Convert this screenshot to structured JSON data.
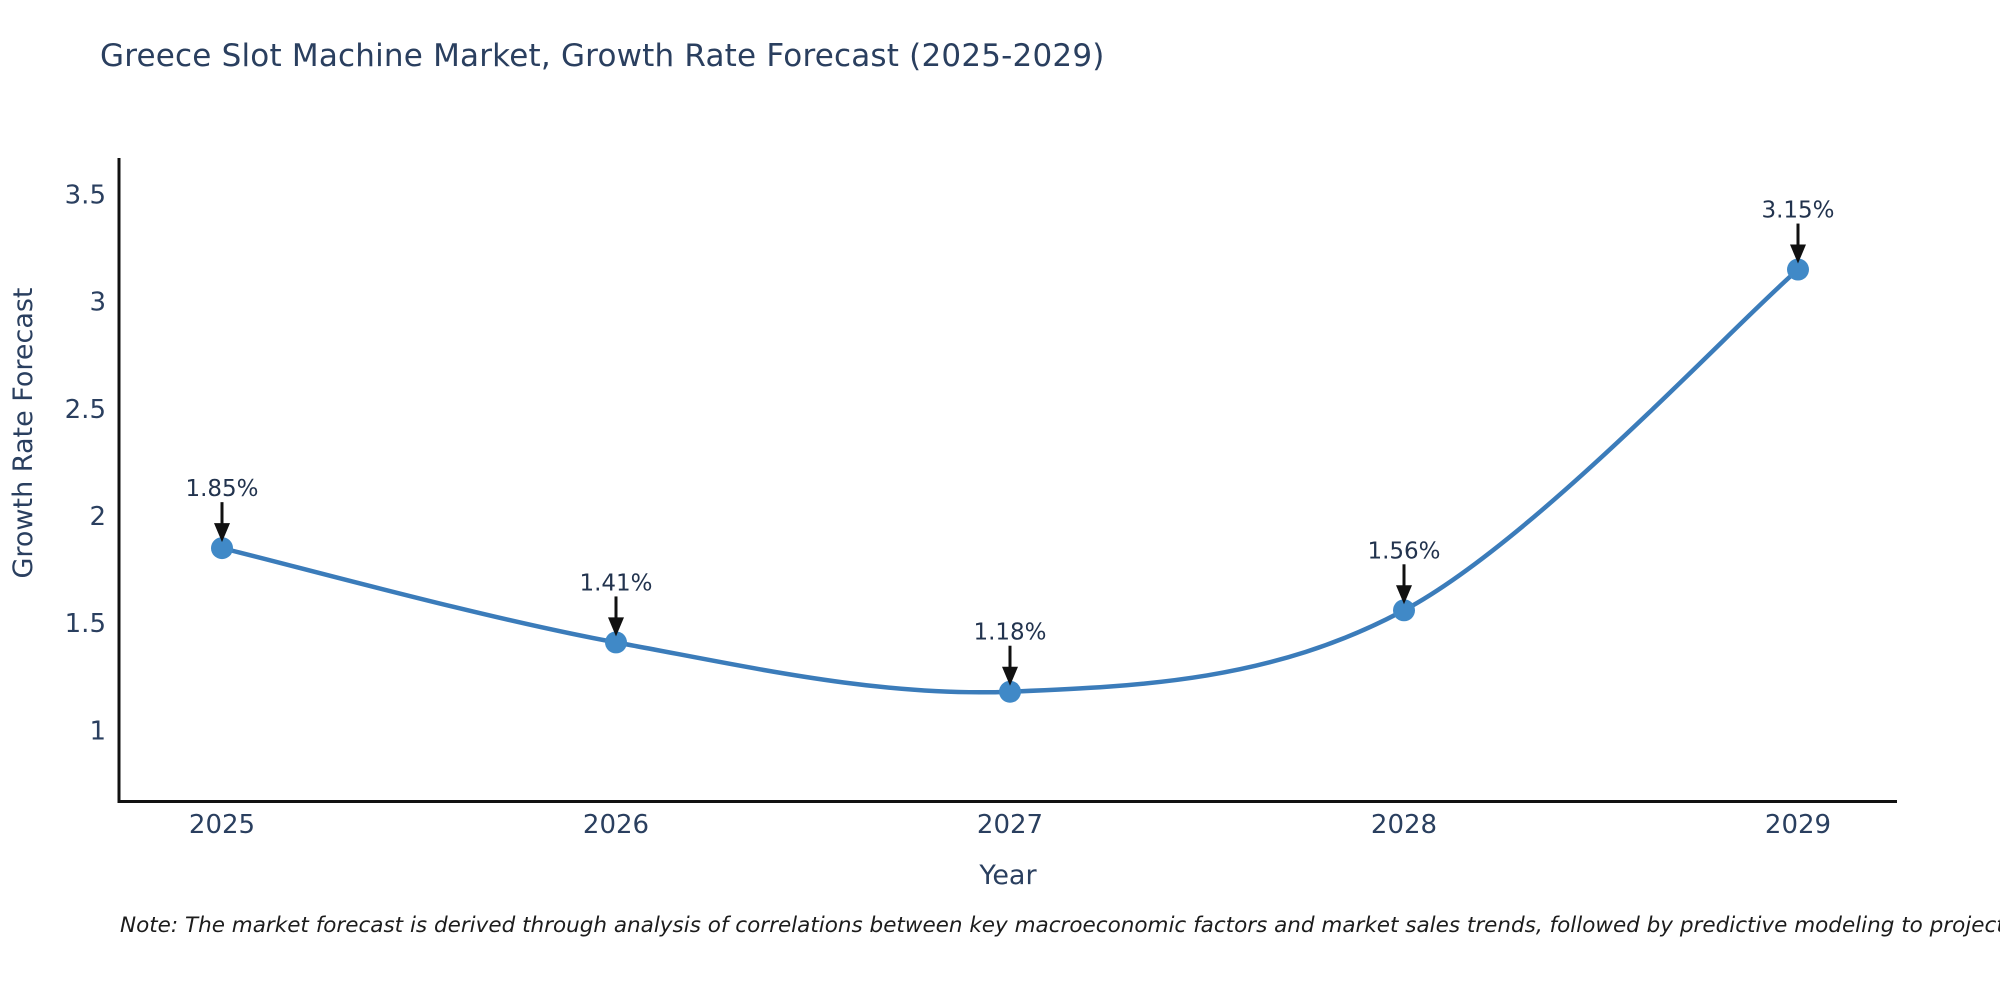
{
  "title": "Greece Slot Machine Market, Growth Rate Forecast (2025-2029)",
  "note": "Note: The market forecast is derived through analysis of correlations between key macroeconomic factors and market sales trends, followed by predictive modeling to project future sales",
  "chart_data": {
    "type": "line",
    "title": "Greece Slot Machine Market, Growth Rate Forecast (2025-2029)",
    "xlabel": "Year",
    "ylabel": "Growth Rate Forecast",
    "categories": [
      "2025",
      "2026",
      "2027",
      "2028",
      "2029"
    ],
    "series": [
      {
        "name": "Growth Rate Forecast",
        "values": [
          1.85,
          1.41,
          1.18,
          1.56,
          3.15
        ],
        "point_labels": [
          "1.85%",
          "1.41%",
          "1.18%",
          "1.56%",
          "3.15%"
        ]
      }
    ],
    "yticks": [
      "3.5",
      "3",
      "2.5",
      "2",
      "1.5",
      "1"
    ],
    "ytick_values": [
      3.5,
      3,
      2.5,
      2,
      1.5,
      1
    ],
    "ylim": [
      0.67,
      3.67
    ],
    "line_shape": "spline",
    "grid": false,
    "legend": "none",
    "annotations_arrow": "down",
    "colors": {
      "line": "#3b7cba",
      "marker": "#4089c7",
      "text": "#2a3f5f",
      "annotation_text": "#22334e",
      "arrow": "#111111",
      "axis": "#111111",
      "background": "#ffffff"
    }
  }
}
